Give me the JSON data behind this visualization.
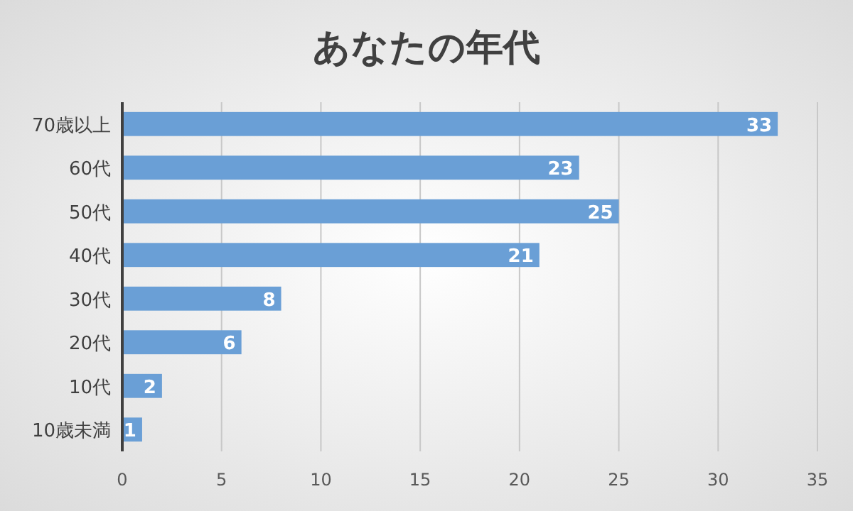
{
  "chart_data": {
    "type": "bar",
    "orientation": "horizontal",
    "title": "あなたの年代",
    "categories": [
      "70歳以上",
      "60代",
      "50代",
      "40代",
      "30代",
      "20代",
      "10代",
      "10歳未満"
    ],
    "values": [
      33,
      23,
      25,
      21,
      8,
      6,
      2,
      1
    ],
    "color": "#6a9fd6",
    "xlim": [
      0,
      35
    ],
    "xticks": [
      0,
      5,
      10,
      15,
      20,
      25,
      30,
      35
    ],
    "grid": "x",
    "data_labels": true
  }
}
